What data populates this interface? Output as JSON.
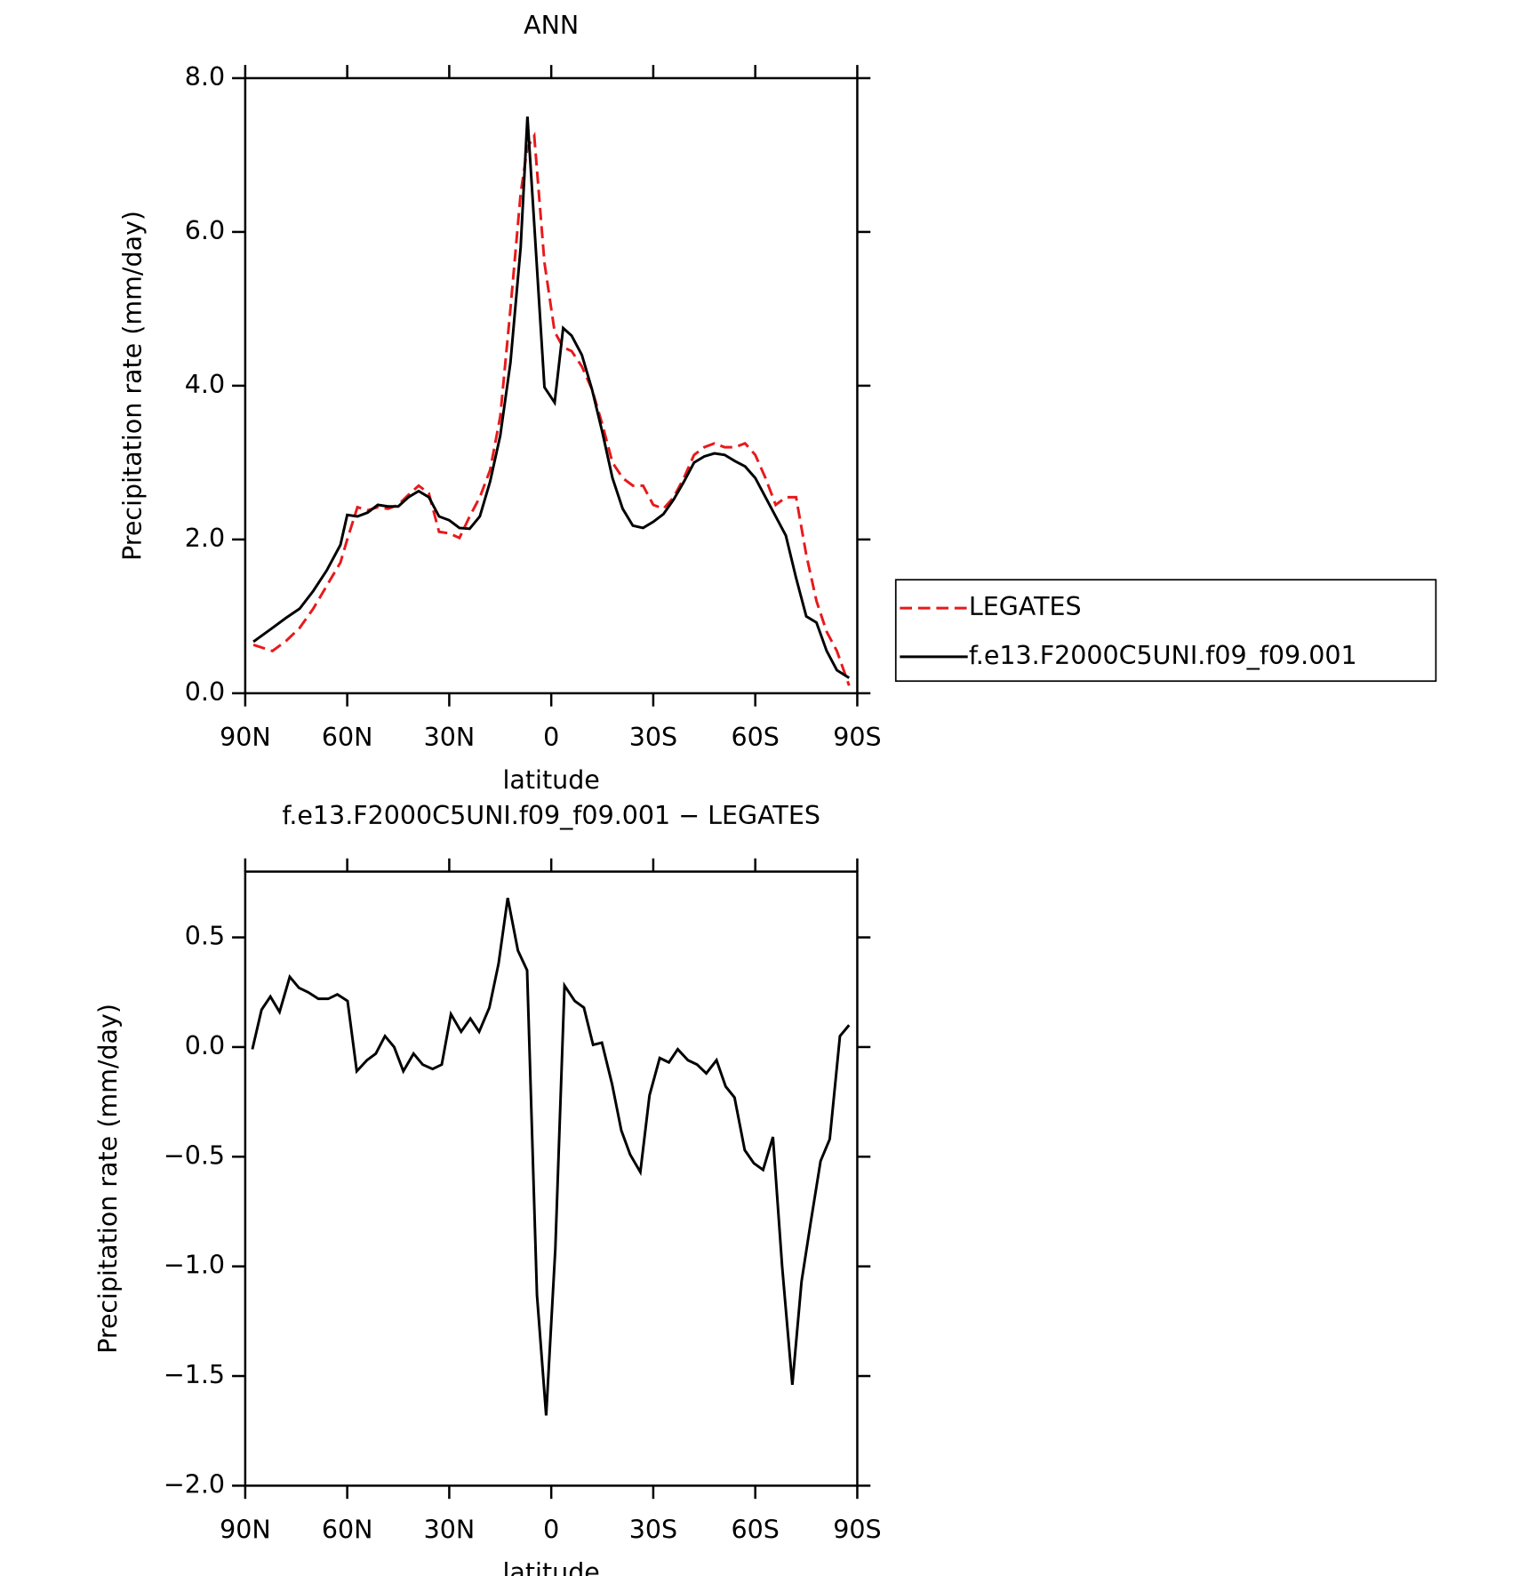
{
  "chart_data": [
    {
      "type": "line",
      "title": "ANN",
      "xlabel": "latitude",
      "ylabel": "Precipitation rate (mm/day)",
      "x": [
        87.6,
        82,
        78,
        74,
        70,
        66,
        62,
        60,
        57,
        54,
        51,
        48,
        45,
        42,
        39,
        36,
        33,
        30,
        27,
        24,
        21,
        18,
        15,
        12,
        9,
        7,
        5,
        2,
        -1,
        -3.5,
        -6,
        -9,
        -12,
        -15,
        -18,
        -21,
        -24,
        -27,
        -30,
        -33,
        -36,
        -39,
        -42,
        -45,
        -48,
        -51,
        -54,
        -57,
        -60,
        -63,
        -66,
        -69,
        -72,
        -75,
        -78,
        -81,
        -84,
        -87.6
      ],
      "series": [
        {
          "name": "LEGATES",
          "color": "#e8191b",
          "linestyle": "dashed",
          "values": [
            0.63,
            0.55,
            0.68,
            0.85,
            1.1,
            1.4,
            1.7,
            2.0,
            2.42,
            2.38,
            2.42,
            2.4,
            2.45,
            2.58,
            2.7,
            2.6,
            2.1,
            2.08,
            2.02,
            2.3,
            2.55,
            2.9,
            3.6,
            5.0,
            6.5,
            7.1,
            7.25,
            5.6,
            4.7,
            4.5,
            4.45,
            4.25,
            3.95,
            3.5,
            3.0,
            2.8,
            2.7,
            2.7,
            2.45,
            2.4,
            2.55,
            2.8,
            3.1,
            3.2,
            3.25,
            3.2,
            3.2,
            3.25,
            3.1,
            2.8,
            2.45,
            2.55,
            2.55,
            1.8,
            1.2,
            0.8,
            0.55,
            0.1
          ]
        },
        {
          "name": "f.e13.F2000C5UNI.f09_f09.001",
          "color": "#000000",
          "linestyle": "solid",
          "values": [
            0.67,
            0.85,
            0.98,
            1.1,
            1.33,
            1.6,
            1.93,
            2.32,
            2.3,
            2.35,
            2.45,
            2.43,
            2.43,
            2.55,
            2.63,
            2.55,
            2.3,
            2.25,
            2.15,
            2.14,
            2.3,
            2.75,
            3.35,
            4.3,
            5.8,
            7.5,
            6.1,
            3.98,
            3.78,
            4.75,
            4.65,
            4.4,
            3.95,
            3.4,
            2.8,
            2.4,
            2.18,
            2.15,
            2.23,
            2.33,
            2.52,
            2.75,
            3.0,
            3.08,
            3.12,
            3.1,
            3.02,
            2.95,
            2.8,
            2.55,
            2.3,
            2.05,
            1.5,
            1.0,
            0.92,
            0.55,
            0.3,
            0.2
          ]
        }
      ],
      "xlim": [
        90,
        -90
      ],
      "xticks": [
        {
          "value": 90,
          "label": "90N"
        },
        {
          "value": 60,
          "label": "60N"
        },
        {
          "value": 30,
          "label": "30N"
        },
        0,
        {
          "value": -30,
          "label": "30S"
        },
        {
          "value": -60,
          "label": "60S"
        },
        {
          "value": -90,
          "label": "90S"
        }
      ],
      "ylim": [
        0,
        8
      ],
      "yticks": [
        {
          "value": 0,
          "label": "0.0"
        },
        {
          "value": 2,
          "label": "2.0"
        },
        {
          "value": 4,
          "label": "4.0"
        },
        {
          "value": 6,
          "label": "6.0"
        },
        {
          "value": 8,
          "label": "8.0"
        }
      ],
      "legend": "right"
    },
    {
      "type": "line",
      "title": "f.e13.F2000C5UNI.f09_f09.001 − LEGATES",
      "xlabel": "latitude",
      "ylabel": "Precipitation rate (mm/day)",
      "x": [
        87.9,
        85.2,
        82.6,
        79.9,
        76.9,
        74.2,
        71.5,
        68.5,
        65.6,
        62.9,
        59.9,
        57.2,
        54.2,
        51.6,
        48.9,
        46.2,
        43.5,
        40.5,
        37.8,
        34.9,
        32.2,
        29.5,
        26.5,
        23.8,
        21.2,
        18.2,
        15.5,
        12.8,
        9.8,
        7.1,
        4.2,
        1.5,
        -1.2,
        -3.9,
        -6.9,
        -9.6,
        -12.3,
        -14.9,
        -17.9,
        -20.6,
        -23.2,
        -26.2,
        -28.9,
        -31.9,
        -34.6,
        -37.2,
        -40.2,
        -42.9,
        -45.6,
        -48.6,
        -51.3,
        -53.9,
        -56.9,
        -59.6,
        -62.3,
        -65.2,
        -67.9,
        -70.9,
        -73.6,
        -76.3,
        -79.2,
        -81.9,
        -84.9,
        -87.6
      ],
      "values": [
        -0.01,
        0.17,
        0.23,
        0.16,
        0.32,
        0.27,
        0.25,
        0.22,
        0.22,
        0.24,
        0.21,
        -0.11,
        -0.06,
        -0.03,
        0.05,
        0.0,
        -0.11,
        -0.03,
        -0.08,
        -0.1,
        -0.08,
        0.15,
        0.07,
        0.13,
        0.07,
        0.18,
        0.38,
        0.68,
        0.44,
        0.35,
        -1.13,
        -1.68,
        -0.92,
        0.28,
        0.21,
        0.18,
        0.01,
        0.02,
        -0.17,
        -0.38,
        -0.49,
        -0.57,
        -0.22,
        -0.05,
        -0.07,
        -0.01,
        -0.06,
        -0.08,
        -0.12,
        -0.06,
        -0.18,
        -0.23,
        -0.47,
        -0.53,
        -0.56,
        -0.41,
        -1.0,
        -1.54,
        -1.07,
        -0.8,
        -0.52,
        -0.42,
        0.05,
        0.1
      ],
      "color": "#000000",
      "xlim": [
        90,
        -90
      ],
      "xticks": [
        {
          "value": 90,
          "label": "90N"
        },
        {
          "value": 60,
          "label": "60N"
        },
        {
          "value": 30,
          "label": "30N"
        },
        0,
        {
          "value": -30,
          "label": "30S"
        },
        {
          "value": -60,
          "label": "60S"
        },
        {
          "value": -90,
          "label": "90S"
        }
      ],
      "ylim": [
        -2.0,
        0.8
      ],
      "yticks": [
        {
          "value": -2,
          "label": "−2.0"
        },
        {
          "value": -1.5,
          "label": "−1.5"
        },
        {
          "value": -1,
          "label": "−1.0"
        },
        {
          "value": -0.5,
          "label": "−0.5"
        },
        {
          "value": 0,
          "label": "0.0"
        },
        0.5
      ]
    }
  ]
}
